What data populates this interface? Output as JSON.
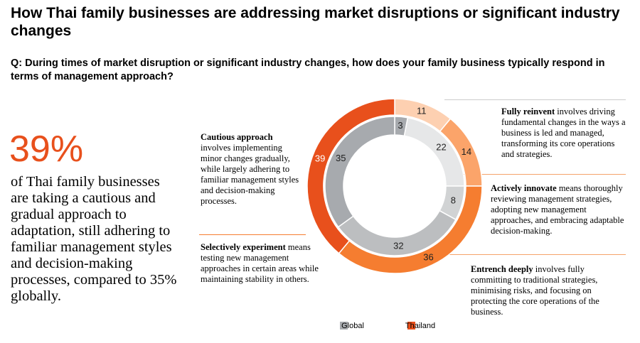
{
  "title": "How Thai family businesses are addressing market disruptions or significant industry changes",
  "question": "Q: During times of market disruption or significant industry changes, how does your family business typically respond in terms of management approach?",
  "highlight": {
    "stat": "39%",
    "text": "of Thai family businesses are taking a cautious and gradual approach to adaptation, still adhering to familiar management styles and decision-making processes, compared to 35% globally."
  },
  "chart_data": {
    "type": "donut",
    "categories": [
      "Entrench deeply",
      "Fully reinvent",
      "Actively innovate",
      "Selectively experiment",
      "Cautious approach"
    ],
    "descriptions": [
      "involves fully committing to traditional strategies, minimising risks, and focusing on protecting the core operations of the business.",
      "involves driving fundamental changes in the ways a business is led and managed, transforming its core operations and strategies.",
      "means thoroughly reviewing management strategies, adopting new management approaches, and embracing adaptable decision-making.",
      "means testing new management approaches in certain areas while maintaining stability in others.",
      "involves implementing minor changes gradually, while largely adhering to familiar management styles and decision-making processes."
    ],
    "series": [
      {
        "name": "Global",
        "color": "#a7aaae",
        "colors": [
          "#a7aaae",
          "#e6e7e8",
          "#d1d3d4",
          "#bcbec0",
          "#a7aaae"
        ],
        "values": [
          3,
          22,
          8,
          32,
          35
        ]
      },
      {
        "name": "Thailand",
        "color": "#e8501c",
        "colors": [
          "#ffffff",
          "#fdd0b1",
          "#fba46a",
          "#f57d30",
          "#e8501c"
        ],
        "values": [
          null,
          11,
          14,
          36,
          39
        ]
      }
    ]
  }
}
